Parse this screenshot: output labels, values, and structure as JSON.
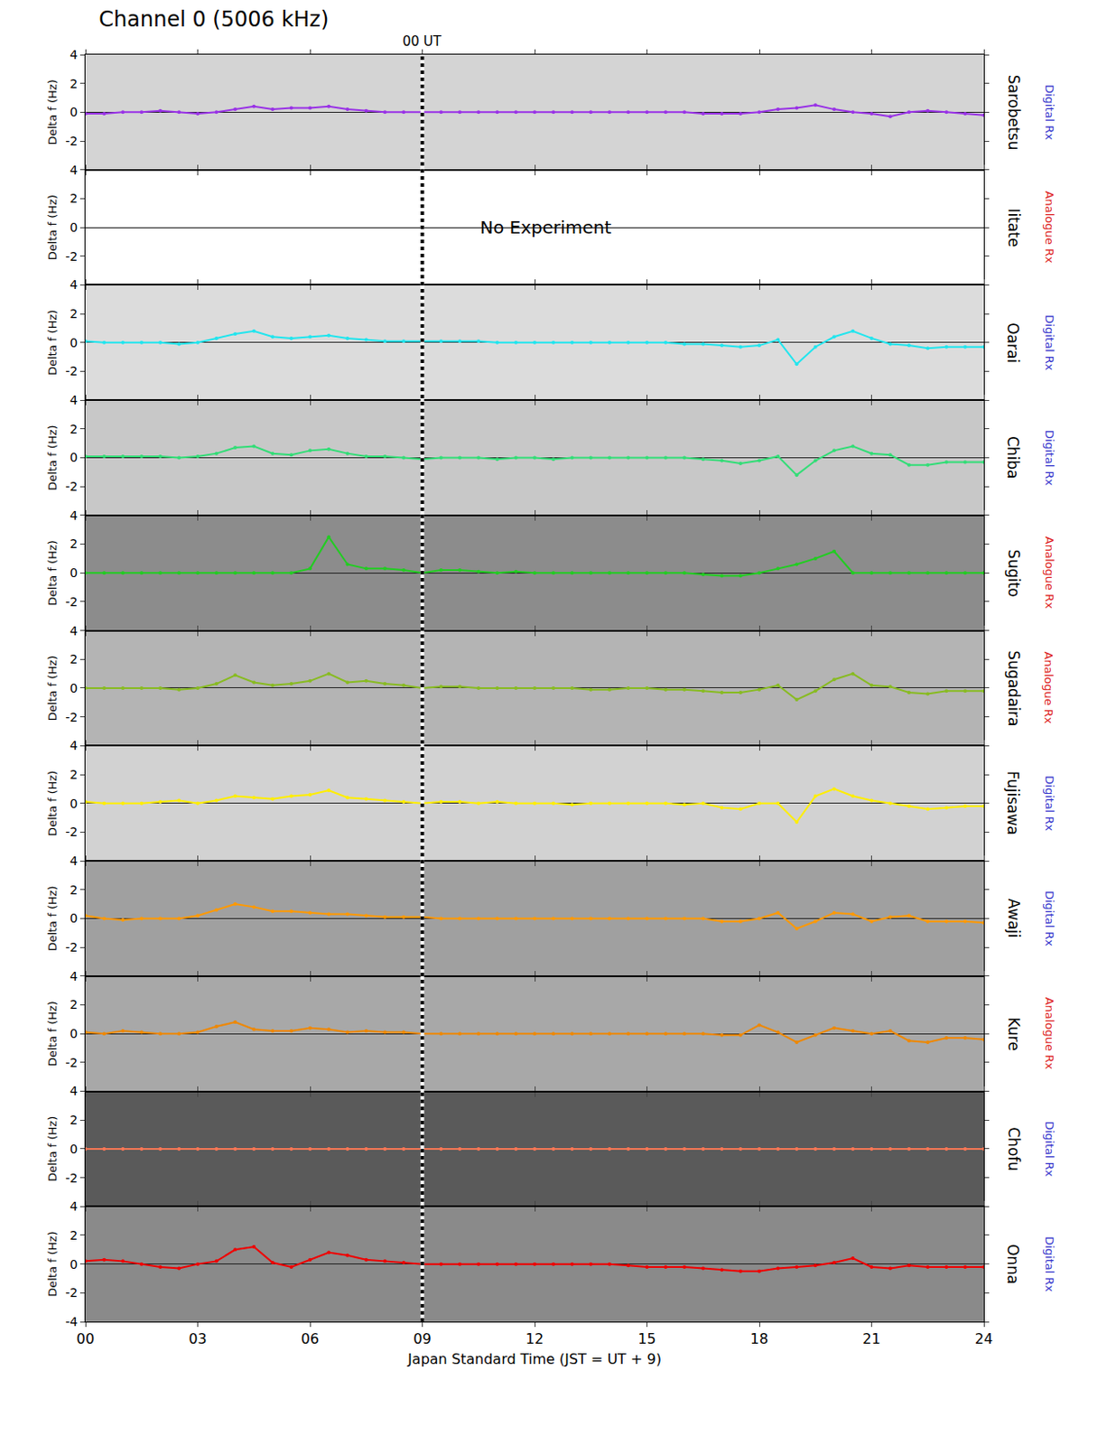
{
  "chart_data": {
    "type": "scatter",
    "title": "Channel 0 (5006 kHz)",
    "xlabel": "Japan Standard Time (JST = UT + 9)",
    "ylabel": "Delta f (Hz)",
    "xlim": [
      0,
      24
    ],
    "xticks": [
      {
        "value": 0,
        "label": "00"
      },
      {
        "value": 3,
        "label": "03"
      },
      {
        "value": 6,
        "label": "06"
      },
      {
        "value": 9,
        "label": "09"
      },
      {
        "value": 12,
        "label": "12"
      },
      {
        "value": 15,
        "label": "15"
      },
      {
        "value": 18,
        "label": "18"
      },
      {
        "value": 21,
        "label": "21"
      },
      {
        "value": 24,
        "label": "24"
      }
    ],
    "ylim": [
      -4,
      4
    ],
    "yticks": [
      -4,
      -2,
      0,
      2,
      4
    ],
    "annotations": [
      {
        "text": "00 UT",
        "x": 9
      },
      {
        "text": "No Experiment",
        "x": 10.5,
        "y": 0,
        "series": "Iitate"
      }
    ],
    "x": [
      0,
      0.5,
      1,
      1.5,
      2,
      2.5,
      3,
      3.5,
      4,
      4.5,
      5,
      5.5,
      6,
      6.5,
      7,
      7.5,
      8,
      8.5,
      9,
      9.5,
      10,
      10.5,
      11,
      11.5,
      12,
      12.5,
      13,
      13.5,
      14,
      14.5,
      15,
      15.5,
      16,
      16.5,
      17,
      17.5,
      18,
      18.5,
      19,
      19.5,
      20,
      20.5,
      21,
      21.5,
      22,
      22.5,
      23,
      23.5,
      24
    ],
    "series": [
      {
        "name": "Sarobetsu",
        "receiver": {
          "label": "Digital Rx",
          "color": "#3333cc"
        },
        "color": "#9932e6",
        "values": [
          -0.1,
          -0.1,
          0,
          0,
          0.1,
          0,
          -0.1,
          0,
          0.2,
          0.4,
          0.2,
          0.3,
          0.3,
          0.4,
          0.2,
          0.1,
          0,
          0,
          0,
          0,
          0,
          0,
          0,
          0,
          0,
          0,
          0,
          0,
          0,
          0,
          0,
          0,
          0,
          -0.1,
          -0.1,
          -0.1,
          0,
          0.2,
          0.3,
          0.5,
          0.2,
          0,
          -0.1,
          -0.3,
          0,
          0.1,
          0,
          -0.1,
          -0.2
        ]
      },
      {
        "name": "Iitate",
        "receiver": {
          "label": "Analogue Rx",
          "color": "#dd2222"
        },
        "values": [
          null,
          null,
          null,
          null,
          null,
          null,
          null,
          null,
          null,
          null,
          null,
          null,
          null,
          null,
          null,
          null,
          null,
          null,
          null,
          null,
          null,
          null,
          null,
          null,
          null,
          null,
          null,
          null,
          null,
          null,
          null,
          null,
          null,
          null,
          null,
          null,
          null,
          null,
          null,
          null,
          null,
          null,
          null,
          null,
          null,
          null,
          null,
          null,
          null
        ]
      },
      {
        "name": "Oarai",
        "receiver": {
          "label": "Digital Rx",
          "color": "#3333cc"
        },
        "color": "#22e5ee",
        "values": [
          0.1,
          0,
          0,
          0,
          0,
          -0.1,
          0,
          0.3,
          0.6,
          0.8,
          0.4,
          0.3,
          0.4,
          0.5,
          0.3,
          0.2,
          0.1,
          0.1,
          0.1,
          0.1,
          0.1,
          0.1,
          0,
          0,
          0,
          0,
          0,
          0,
          0,
          0,
          0,
          0,
          -0.1,
          -0.1,
          -0.2,
          -0.3,
          -0.2,
          0.2,
          -1.5,
          -0.3,
          0.4,
          0.8,
          0.3,
          -0.1,
          -0.2,
          -0.4,
          -0.3,
          -0.3,
          -0.3
        ]
      },
      {
        "name": "Chiba",
        "receiver": {
          "label": "Digital Rx",
          "color": "#3333cc"
        },
        "color": "#33dd77",
        "values": [
          0.1,
          0.1,
          0.1,
          0.1,
          0.1,
          0,
          0.1,
          0.3,
          0.7,
          0.8,
          0.3,
          0.2,
          0.5,
          0.6,
          0.3,
          0.1,
          0.1,
          0,
          -0.1,
          0,
          0,
          0,
          -0.1,
          0,
          0,
          -0.1,
          0,
          0,
          0,
          0,
          0,
          0,
          0,
          -0.1,
          -0.2,
          -0.4,
          -0.2,
          0.1,
          -1.2,
          -0.2,
          0.5,
          0.8,
          0.3,
          0.2,
          -0.5,
          -0.5,
          -0.3,
          -0.3,
          -0.3
        ]
      },
      {
        "name": "Sugito",
        "receiver": {
          "label": "Analogue Rx",
          "color": "#dd2222"
        },
        "color": "#22cc22",
        "values": [
          0,
          0,
          0,
          0,
          0,
          0,
          0,
          0,
          0,
          0,
          0,
          0,
          0.3,
          2.5,
          0.6,
          0.3,
          0.3,
          0.2,
          0,
          0.2,
          0.2,
          0.1,
          0,
          0.1,
          0,
          0,
          0,
          0,
          0,
          0,
          0,
          0,
          0,
          -0.1,
          -0.2,
          -0.2,
          0,
          0.3,
          0.6,
          1.0,
          1.5,
          0,
          0,
          0,
          0,
          0,
          0,
          0,
          0
        ]
      },
      {
        "name": "Sugadaira",
        "receiver": {
          "label": "Analogue Rx",
          "color": "#dd2222"
        },
        "color": "#88bb22",
        "values": [
          0,
          0,
          0,
          0,
          0,
          -0.1,
          0,
          0.3,
          0.9,
          0.4,
          0.2,
          0.3,
          0.5,
          1.0,
          0.4,
          0.5,
          0.3,
          0.2,
          0,
          0.1,
          0.1,
          0,
          0,
          0,
          0,
          0,
          0,
          -0.1,
          -0.1,
          0,
          0,
          -0.1,
          -0.1,
          -0.2,
          -0.3,
          -0.3,
          -0.1,
          0.2,
          -0.8,
          -0.2,
          0.6,
          1.0,
          0.2,
          0.1,
          -0.3,
          -0.4,
          -0.2,
          -0.2,
          -0.2
        ]
      },
      {
        "name": "Fujisawa",
        "receiver": {
          "label": "Digital Rx",
          "color": "#3333cc"
        },
        "color": "#ffee00",
        "values": [
          0.1,
          0,
          0,
          0,
          0.1,
          0.2,
          0,
          0.2,
          0.5,
          0.4,
          0.3,
          0.5,
          0.6,
          0.9,
          0.4,
          0.3,
          0.2,
          0.1,
          0,
          0.1,
          0.1,
          0,
          0.1,
          0,
          0,
          0,
          -0.1,
          0,
          0,
          0,
          0,
          0,
          -0.1,
          0,
          -0.3,
          -0.4,
          0,
          0,
          -1.3,
          0.5,
          1.0,
          0.5,
          0.2,
          0,
          -0.2,
          -0.4,
          -0.3,
          -0.2,
          -0.2
        ]
      },
      {
        "name": "Awaji",
        "receiver": {
          "label": "Digital Rx",
          "color": "#3333cc"
        },
        "color": "#ff9900",
        "values": [
          0.2,
          0,
          -0.1,
          0,
          0,
          0,
          0.2,
          0.6,
          1.0,
          0.8,
          0.5,
          0.5,
          0.4,
          0.3,
          0.3,
          0.2,
          0.1,
          0.1,
          0.1,
          0,
          0,
          0,
          0,
          0,
          0,
          0,
          0,
          0,
          0,
          0,
          0,
          0,
          0,
          0,
          -0.2,
          -0.2,
          0,
          0.4,
          -0.7,
          -0.2,
          0.4,
          0.3,
          -0.2,
          0.1,
          0.2,
          -0.2,
          -0.2,
          -0.2,
          -0.3
        ]
      },
      {
        "name": "Kure",
        "receiver": {
          "label": "Analogue Rx",
          "color": "#dd2222"
        },
        "color": "#ee8800",
        "values": [
          0.1,
          0,
          0.2,
          0.1,
          0,
          0,
          0.1,
          0.5,
          0.8,
          0.3,
          0.2,
          0.2,
          0.4,
          0.3,
          0.1,
          0.2,
          0.1,
          0.1,
          0,
          0,
          0,
          0,
          0,
          0,
          0,
          0,
          0,
          0,
          0,
          0,
          0,
          0,
          0,
          0,
          -0.1,
          -0.1,
          0.6,
          0.1,
          -0.6,
          -0.1,
          0.4,
          0.2,
          0,
          0.2,
          -0.5,
          -0.6,
          -0.3,
          -0.3,
          -0.4
        ]
      },
      {
        "name": "Chofu",
        "receiver": {
          "label": "Digital Rx",
          "color": "#3333cc"
        },
        "color": "#ff7755",
        "values": [
          0,
          0,
          0,
          0,
          0,
          0,
          0,
          0,
          0,
          0,
          0,
          0,
          0,
          0,
          0,
          0,
          0,
          0,
          0,
          0,
          0,
          0,
          0,
          0,
          0,
          0,
          0,
          0,
          0,
          0,
          0,
          0,
          0,
          0,
          0,
          0,
          0,
          0,
          0,
          0,
          0,
          0,
          0,
          0,
          0,
          0,
          0,
          0,
          0
        ]
      },
      {
        "name": "Onna",
        "receiver": {
          "label": "Digital Rx",
          "color": "#3333cc"
        },
        "color": "#ee0000",
        "values": [
          0.2,
          0.3,
          0.2,
          0,
          -0.2,
          -0.3,
          0,
          0.2,
          1.0,
          1.2,
          0.1,
          -0.2,
          0.3,
          0.8,
          0.6,
          0.3,
          0.2,
          0.1,
          0,
          0,
          0,
          0,
          0,
          0,
          0,
          0,
          0,
          0,
          0,
          -0.1,
          -0.2,
          -0.2,
          -0.2,
          -0.3,
          -0.4,
          -0.5,
          -0.5,
          -0.3,
          -0.2,
          -0.1,
          0.1,
          0.4,
          -0.2,
          -0.3,
          -0.1,
          -0.2,
          -0.2,
          -0.2,
          -0.2
        ]
      }
    ]
  }
}
